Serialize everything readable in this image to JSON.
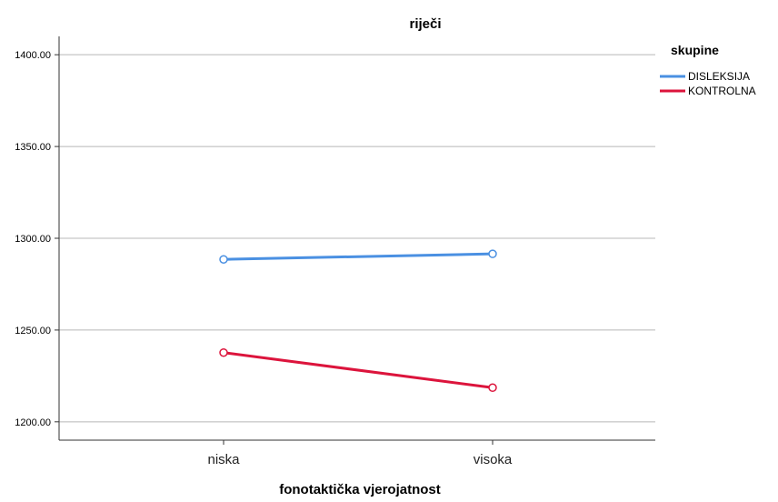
{
  "chart_data": {
    "type": "line",
    "title": "riječi",
    "xlabel": "fonotaktička vjerojatnost",
    "ylabel": "",
    "categories": [
      "niska",
      "visoka"
    ],
    "ylim": [
      1190,
      1410
    ],
    "yticks": [
      1200,
      1250,
      1300,
      1350,
      1400
    ],
    "ytick_labels": [
      "1200.00",
      "1250.00",
      "1300.00",
      "1350.00",
      "1400.00"
    ],
    "grid": true,
    "legend": {
      "title": "skupine",
      "placement": "right"
    },
    "series": [
      {
        "name": "DISLEKSIJA",
        "values": [
          1288.5,
          1291.5
        ],
        "color": "#4a90e2"
      },
      {
        "name": "KONTROLNA",
        "values": [
          1237.7,
          1218.6
        ],
        "color": "#dc143c"
      }
    ]
  }
}
